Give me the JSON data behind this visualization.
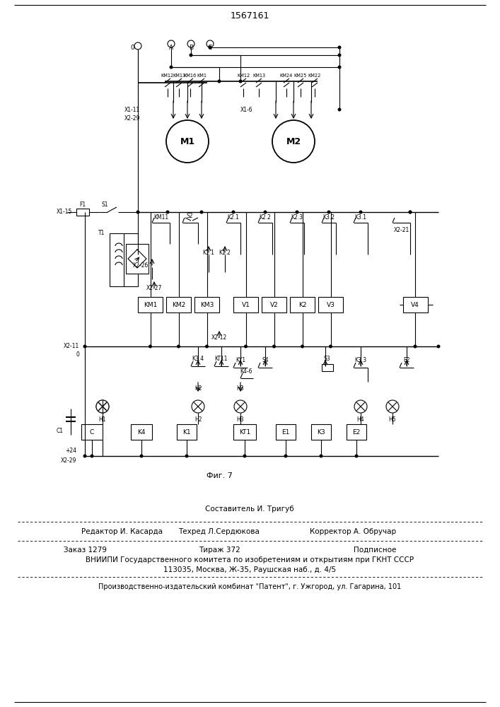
{
  "patent_number": "1567161",
  "fig_label": "Фиг. 7",
  "bg_color": "#ffffff",
  "text_color": "#000000",
  "footer": {
    "composer": "Составитель И. Тригуб",
    "editor": "Редактор И. Касарда",
    "techred": "Техред Л.Сердюкова",
    "corrector": "Корректор А. Обручар",
    "order": "Заказ 1279",
    "tirazh": "Тираж 372",
    "podpisnoe": "Подписное",
    "vniiipi": "ВНИИПИ Государственного комитета по изобретениям и открытиям при ГКНТ СССР",
    "address": "113035, Москва, Ж-35, Раушская наб., д. 4/5",
    "plant": "Производственно-издательский комбинат \"Патент\", г. Ужгород, ул. Гагарина, 101"
  }
}
